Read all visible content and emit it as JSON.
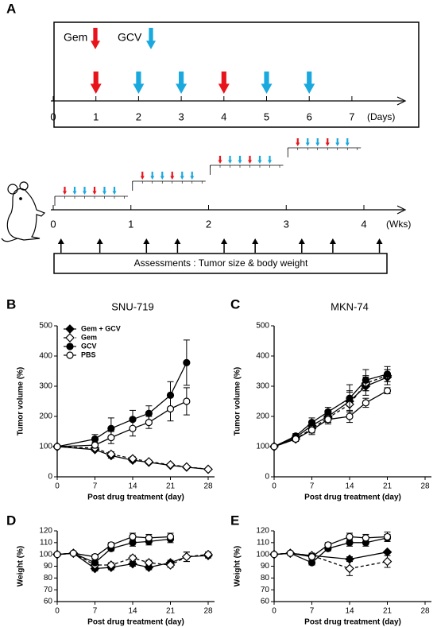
{
  "panel_labels": [
    "A",
    "B",
    "C",
    "D",
    "E"
  ],
  "schedule": {
    "legend": [
      {
        "label": "Gem",
        "color": "#e8141b"
      },
      {
        "label": "GCV",
        "color": "#1aa9de"
      }
    ],
    "gem_days": [
      1,
      4
    ],
    "gcv_days": [
      2,
      3,
      5,
      6
    ],
    "day_ticks": [
      0,
      1,
      2,
      3,
      4,
      5,
      6,
      7
    ],
    "day_unit": "(Days)",
    "week_ticks": [
      0,
      1,
      2,
      3,
      4
    ],
    "week_unit": "(Wks)",
    "assessment_weeks": [
      0.1,
      0.6,
      1.2,
      1.6,
      2.2,
      2.6,
      3.2,
      3.6,
      4.2
    ],
    "assessment": "Assessments : Tumor size & body weight"
  },
  "chart_data": [
    {
      "type": "line",
      "title": "SNU-719",
      "xlabel": "Post drug treatment (day)",
      "ylabel": "Tumor volume (%)",
      "xlim": [
        0,
        28
      ],
      "ylim": [
        0,
        500
      ],
      "xticks": [
        0,
        7,
        14,
        21,
        28
      ],
      "yticks": [
        0,
        100,
        200,
        300,
        400,
        500
      ],
      "legend": "upper left",
      "series": [
        {
          "name": "Gem + GCV",
          "color": "#000000",
          "marker": "diamond",
          "marker_fill": "#000000",
          "dashed": false,
          "x": [
            0,
            7,
            10,
            14,
            17,
            21,
            24,
            28
          ],
          "values": [
            100,
            90,
            70,
            55,
            48,
            38,
            32,
            25
          ],
          "errors": [
            0,
            5,
            8,
            6,
            5,
            4,
            4,
            3
          ]
        },
        {
          "name": "Gem",
          "color": "#000000",
          "marker": "diamond",
          "marker_fill": "#ffffff",
          "dashed": true,
          "x": [
            0,
            7,
            10,
            14,
            17,
            21,
            24,
            28
          ],
          "values": [
            100,
            95,
            75,
            60,
            50,
            40,
            33,
            25
          ],
          "errors": [
            0,
            8,
            8,
            6,
            5,
            4,
            3,
            3
          ]
        },
        {
          "name": "GCV",
          "color": "#000000",
          "marker": "circle",
          "marker_fill": "#000000",
          "dashed": false,
          "x": [
            0,
            7,
            10,
            14,
            17,
            21,
            24
          ],
          "values": [
            100,
            125,
            160,
            190,
            210,
            270,
            378
          ],
          "errors": [
            0,
            15,
            35,
            30,
            25,
            45,
            75
          ]
        },
        {
          "name": "PBS",
          "color": "#000000",
          "marker": "circle",
          "marker_fill": "#ffffff",
          "dashed": false,
          "x": [
            0,
            7,
            10,
            14,
            17,
            21,
            24
          ],
          "values": [
            100,
            105,
            130,
            160,
            180,
            225,
            250
          ],
          "errors": [
            0,
            10,
            20,
            25,
            20,
            40,
            45
          ]
        }
      ]
    },
    {
      "type": "line",
      "title": "MKN-74",
      "xlabel": "Post drug treatment (day)",
      "ylabel": "Tumor volume (%)",
      "xlim": [
        0,
        28
      ],
      "ylim": [
        0,
        500
      ],
      "xticks": [
        0,
        7,
        14,
        21,
        28
      ],
      "yticks": [
        0,
        100,
        200,
        300,
        400,
        500
      ],
      "series": [
        {
          "color": "#000000",
          "marker": "diamond",
          "marker_fill": "#000000",
          "dashed": false,
          "x": [
            0,
            4,
            7,
            10,
            14,
            17,
            21
          ],
          "values": [
            100,
            130,
            170,
            200,
            250,
            300,
            330
          ],
          "errors": [
            0,
            8,
            15,
            20,
            35,
            30,
            25
          ]
        },
        {
          "color": "#000000",
          "marker": "diamond",
          "marker_fill": "#ffffff",
          "dashed": true,
          "x": [
            0,
            4,
            7,
            10,
            14,
            17,
            21
          ],
          "values": [
            100,
            125,
            160,
            195,
            240,
            310,
            335
          ],
          "errors": [
            0,
            8,
            15,
            15,
            40,
            25,
            20
          ]
        },
        {
          "color": "#000000",
          "marker": "circle",
          "marker_fill": "#000000",
          "dashed": false,
          "x": [
            0,
            4,
            7,
            10,
            14,
            17,
            21
          ],
          "values": [
            100,
            135,
            180,
            215,
            260,
            320,
            340
          ],
          "errors": [
            0,
            8,
            15,
            15,
            45,
            35,
            25
          ]
        },
        {
          "color": "#000000",
          "marker": "circle",
          "marker_fill": "#ffffff",
          "dashed": false,
          "x": [
            0,
            4,
            7,
            10,
            14,
            17,
            21
          ],
          "values": [
            100,
            125,
            155,
            190,
            200,
            245,
            285
          ],
          "errors": [
            0,
            5,
            15,
            15,
            20,
            15,
            10
          ]
        }
      ]
    },
    {
      "type": "line",
      "xlabel": "Post drug treatment (day)",
      "ylabel": "Weight (%)",
      "xlim": [
        0,
        28
      ],
      "ylim": [
        60,
        120
      ],
      "xticks": [
        0,
        7,
        14,
        21,
        28
      ],
      "yticks": [
        60,
        70,
        80,
        90,
        100,
        110,
        120
      ],
      "series": [
        {
          "color": "#000000",
          "marker": "diamond",
          "marker_fill": "#000000",
          "dashed": false,
          "x": [
            0,
            3,
            7,
            10,
            14,
            17,
            21,
            24,
            28
          ],
          "values": [
            100,
            101,
            88,
            89,
            92,
            89,
            93,
            98,
            99
          ],
          "errors": [
            0,
            1,
            2,
            2,
            2,
            2,
            2,
            4,
            2
          ]
        },
        {
          "color": "#000000",
          "marker": "diamond",
          "marker_fill": "#ffffff",
          "dashed": true,
          "x": [
            0,
            3,
            7,
            10,
            14,
            17,
            21,
            24,
            28
          ],
          "values": [
            100,
            101,
            91,
            91,
            97,
            93,
            91,
            98,
            100
          ],
          "errors": [
            0,
            1,
            2,
            2,
            2,
            2,
            2,
            4,
            2
          ]
        },
        {
          "color": "#000000",
          "marker": "circle",
          "marker_fill": "#000000",
          "dashed": false,
          "x": [
            0,
            3,
            7,
            10,
            14,
            17,
            21
          ],
          "values": [
            100,
            101,
            93,
            105,
            110,
            111,
            113
          ],
          "errors": [
            0,
            1,
            2,
            2,
            3,
            3,
            3
          ]
        },
        {
          "color": "#000000",
          "marker": "circle",
          "marker_fill": "#ffffff",
          "dashed": false,
          "x": [
            0,
            3,
            7,
            10,
            14,
            17,
            21
          ],
          "values": [
            100,
            101,
            98,
            108,
            115,
            114,
            115
          ],
          "errors": [
            0,
            1,
            2,
            2,
            3,
            3,
            3
          ]
        }
      ]
    },
    {
      "type": "line",
      "xlabel": "Post drug treatment (day)",
      "ylabel": "Weight (%)",
      "xlim": [
        0,
        28
      ],
      "ylim": [
        60,
        120
      ],
      "xticks": [
        0,
        7,
        14,
        21,
        28
      ],
      "yticks": [
        60,
        70,
        80,
        90,
        100,
        110,
        120
      ],
      "series": [
        {
          "color": "#000000",
          "marker": "diamond",
          "marker_fill": "#000000",
          "dashed": false,
          "x": [
            0,
            3,
            7,
            14,
            21
          ],
          "values": [
            100,
            101,
            99,
            96,
            102
          ],
          "errors": [
            0,
            1,
            2,
            2,
            1
          ]
        },
        {
          "color": "#000000",
          "marker": "diamond",
          "marker_fill": "#ffffff",
          "dashed": true,
          "x": [
            0,
            3,
            7,
            14,
            21
          ],
          "values": [
            100,
            101,
            99,
            88,
            94
          ],
          "errors": [
            0,
            1,
            2,
            6,
            5
          ]
        },
        {
          "color": "#000000",
          "marker": "circle",
          "marker_fill": "#000000",
          "dashed": false,
          "x": [
            0,
            3,
            7,
            10,
            14,
            17,
            21
          ],
          "values": [
            100,
            101,
            93,
            105,
            110,
            110,
            114
          ],
          "errors": [
            0,
            1,
            2,
            2,
            3,
            3,
            3
          ]
        },
        {
          "color": "#000000",
          "marker": "circle",
          "marker_fill": "#ffffff",
          "dashed": false,
          "x": [
            0,
            3,
            7,
            10,
            14,
            17,
            21
          ],
          "values": [
            100,
            101,
            98,
            108,
            115,
            114,
            115
          ],
          "errors": [
            0,
            1,
            2,
            2,
            3,
            3,
            4
          ]
        }
      ]
    }
  ]
}
